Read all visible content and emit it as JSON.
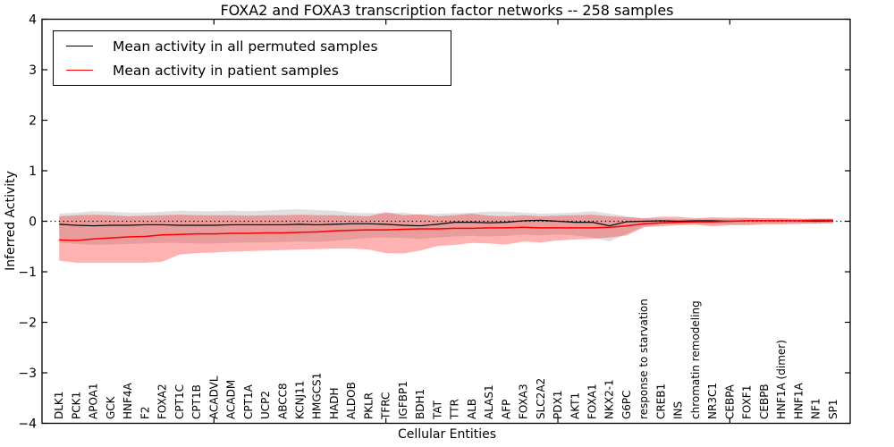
{
  "figure": {
    "title": "FOXA2 and FOXA3 transcription factor networks -- 258 samples",
    "xlabel": "Cellular Entities",
    "ylabel": "Inferred Activity"
  },
  "legend": {
    "items": [
      {
        "label": "Mean activity in all permuted samples",
        "color": "#000000"
      },
      {
        "label": "Mean activity in patient samples",
        "color": "#ff0000"
      }
    ],
    "position": "upper left"
  },
  "chart_data": {
    "type": "line",
    "title": "FOXA2 and FOXA3 transcription factor networks -- 258 samples",
    "xlabel": "Cellular Entities",
    "ylabel": "Inferred Activity",
    "ylim": [
      -4,
      4
    ],
    "xlim": [
      0,
      47
    ],
    "grid": false,
    "legend_position": "upper left",
    "yticks": [
      -4,
      -3,
      -2,
      -1,
      0,
      1,
      2,
      3,
      4
    ],
    "ytick_labels": [
      "−4",
      "−3",
      "−2",
      "−1",
      "0",
      "1",
      "2",
      "3",
      "4"
    ],
    "xticks_numeric": [
      10,
      20,
      30,
      40
    ],
    "zero_line": {
      "y": 0,
      "style": "dotted",
      "color": "#000000"
    },
    "x": [
      1,
      2,
      3,
      4,
      5,
      6,
      7,
      8,
      9,
      10,
      11,
      12,
      13,
      14,
      15,
      16,
      17,
      18,
      19,
      20,
      21,
      22,
      23,
      24,
      25,
      26,
      27,
      28,
      29,
      30,
      31,
      32,
      33,
      34,
      35,
      36,
      37,
      38,
      39,
      40,
      41,
      42,
      43,
      44,
      45,
      46
    ],
    "categories": [
      "DLK1",
      "PCK1",
      "APOA1",
      "GCK",
      "HNF4A",
      "F2",
      "FOXA2",
      "CPT1C",
      "CPT1B",
      "ACADVL",
      "ACADM",
      "CPT1A",
      "UCP2",
      "ABCC8",
      "KCNJ11",
      "HMGCS1",
      "HADH",
      "ALDOB",
      "PKLR",
      "TFRC",
      "IGFBP1",
      "BDH1",
      "TAT",
      "TTR",
      "ALB",
      "ALAS1",
      "AFP",
      "FOXA3",
      "SLC2A2",
      "PDX1",
      "AKT1",
      "FOXA1",
      "NKX2-1",
      "G6PC",
      "response to starvation",
      "CREB1",
      "INS",
      "chromatin remodeling",
      "NR3C1",
      "CEBPA",
      "FOXF1",
      "CEBPB",
      "HNF1A (dimer)",
      "HNF1A",
      "NF1",
      "SP1"
    ],
    "series": [
      {
        "name": "Mean activity in all permuted samples",
        "color": "#000000",
        "line_width": 1.2,
        "band_color": "rgba(0,0,0,0.12)",
        "values": [
          -0.06,
          -0.08,
          -0.09,
          -0.08,
          -0.08,
          -0.07,
          -0.07,
          -0.08,
          -0.08,
          -0.08,
          -0.07,
          -0.07,
          -0.07,
          -0.07,
          -0.06,
          -0.07,
          -0.06,
          -0.05,
          -0.05,
          -0.06,
          -0.08,
          -0.09,
          -0.06,
          -0.02,
          -0.02,
          -0.03,
          -0.02,
          0.01,
          0.02,
          0.0,
          -0.02,
          -0.02,
          -0.09,
          -0.01,
          0.0,
          0.01,
          0.0,
          0.01,
          0.01,
          0.0,
          0.01,
          0.01,
          0.01,
          0.01,
          0.0,
          0.01
        ],
        "band_upper": [
          0.15,
          0.17,
          0.2,
          0.19,
          0.17,
          0.17,
          0.19,
          0.21,
          0.2,
          0.2,
          0.21,
          0.2,
          0.21,
          0.23,
          0.24,
          0.22,
          0.21,
          0.17,
          0.16,
          0.16,
          0.17,
          0.13,
          0.15,
          0.16,
          0.17,
          0.19,
          0.19,
          0.17,
          0.15,
          0.16,
          0.17,
          0.2,
          0.15,
          0.1,
          0.06,
          0.05,
          0.04,
          0.05,
          0.05,
          0.05,
          0.06,
          0.06,
          0.06,
          0.05,
          0.05,
          0.05
        ],
        "band_lower": [
          -0.42,
          -0.45,
          -0.47,
          -0.46,
          -0.45,
          -0.44,
          -0.43,
          -0.43,
          -0.44,
          -0.44,
          -0.43,
          -0.42,
          -0.42,
          -0.41,
          -0.4,
          -0.41,
          -0.39,
          -0.36,
          -0.33,
          -0.32,
          -0.33,
          -0.35,
          -0.32,
          -0.3,
          -0.29,
          -0.3,
          -0.29,
          -0.26,
          -0.28,
          -0.26,
          -0.28,
          -0.32,
          -0.4,
          -0.25,
          -0.1,
          -0.07,
          -0.06,
          -0.06,
          -0.07,
          -0.06,
          -0.06,
          -0.05,
          -0.05,
          -0.05,
          -0.04,
          -0.04
        ]
      },
      {
        "name": "Mean activity in patient samples",
        "color": "#ff0000",
        "line_width": 1.5,
        "band_color": "rgba(255,0,0,0.30)",
        "values": [
          -0.37,
          -0.38,
          -0.35,
          -0.33,
          -0.31,
          -0.3,
          -0.27,
          -0.26,
          -0.25,
          -0.25,
          -0.24,
          -0.24,
          -0.23,
          -0.23,
          -0.22,
          -0.21,
          -0.19,
          -0.18,
          -0.17,
          -0.17,
          -0.16,
          -0.15,
          -0.15,
          -0.14,
          -0.14,
          -0.13,
          -0.13,
          -0.12,
          -0.13,
          -0.13,
          -0.13,
          -0.13,
          -0.12,
          -0.09,
          -0.05,
          -0.03,
          -0.02,
          -0.01,
          -0.01,
          0.0,
          0.01,
          0.01,
          0.01,
          0.01,
          0.02,
          0.02
        ],
        "band_upper": [
          0.1,
          0.12,
          0.13,
          0.12,
          0.1,
          0.11,
          0.12,
          0.13,
          0.12,
          0.12,
          0.12,
          0.11,
          0.12,
          0.12,
          0.13,
          0.12,
          0.12,
          0.11,
          0.1,
          0.18,
          0.12,
          0.14,
          0.1,
          0.12,
          0.15,
          0.11,
          0.1,
          0.12,
          0.1,
          0.11,
          0.12,
          0.13,
          0.1,
          0.08,
          0.06,
          0.09,
          0.09,
          0.06,
          0.08,
          0.07,
          0.07,
          0.06,
          0.06,
          0.05,
          0.05,
          0.05
        ],
        "band_lower": [
          -0.78,
          -0.82,
          -0.82,
          -0.82,
          -0.82,
          -0.82,
          -0.8,
          -0.66,
          -0.63,
          -0.62,
          -0.6,
          -0.59,
          -0.58,
          -0.57,
          -0.56,
          -0.55,
          -0.54,
          -0.54,
          -0.56,
          -0.63,
          -0.64,
          -0.58,
          -0.49,
          -0.47,
          -0.43,
          -0.44,
          -0.46,
          -0.4,
          -0.42,
          -0.38,
          -0.36,
          -0.35,
          -0.32,
          -0.28,
          -0.12,
          -0.1,
          -0.08,
          -0.07,
          -0.1,
          -0.08,
          -0.08,
          -0.06,
          -0.06,
          -0.05,
          -0.05,
          -0.04
        ]
      }
    ]
  }
}
